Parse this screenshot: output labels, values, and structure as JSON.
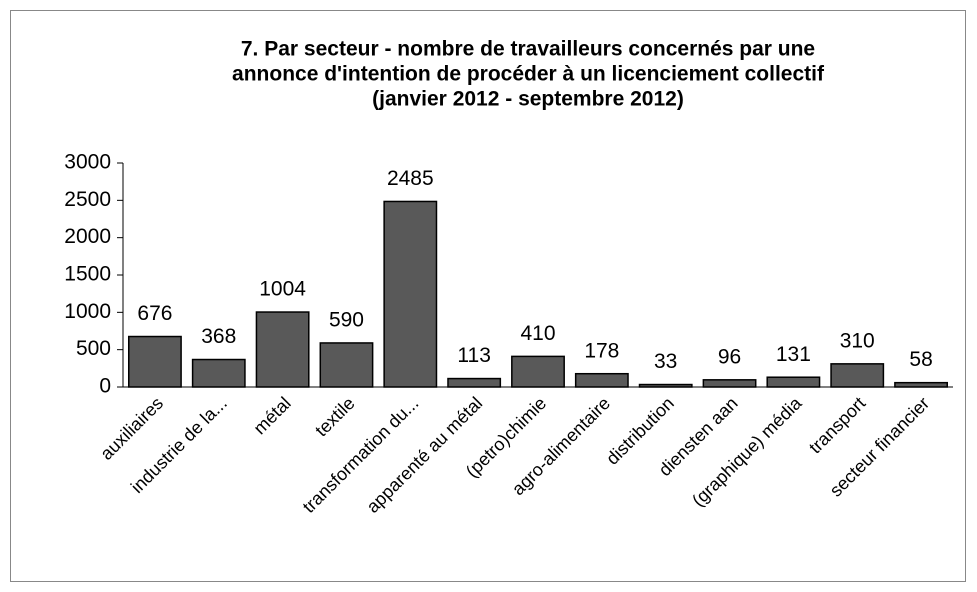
{
  "chart_data": {
    "type": "bar",
    "title": [
      "7. Par secteur -  nombre de travailleurs concernés par une",
      "annonce d'intention de procéder à un licenciement collectif",
      "(janvier 2012 - septembre 2012)"
    ],
    "categories": [
      "auxiliaires",
      "industrie de la...",
      "métal",
      "textile",
      "transformation du...",
      "apparenté au métal",
      "(petro)chimie",
      "agro-alimentaire",
      "distribution",
      "diensten aan",
      "(graphique) média",
      "transport",
      "secteur financier"
    ],
    "values": [
      676,
      368,
      1004,
      590,
      2485,
      113,
      410,
      178,
      33,
      96,
      131,
      310,
      58
    ],
    "color": "#595959",
    "ylim": [
      0,
      3000
    ],
    "yticks": [
      0,
      500,
      1000,
      1500,
      2000,
      2500,
      3000
    ],
    "grid": false
  }
}
